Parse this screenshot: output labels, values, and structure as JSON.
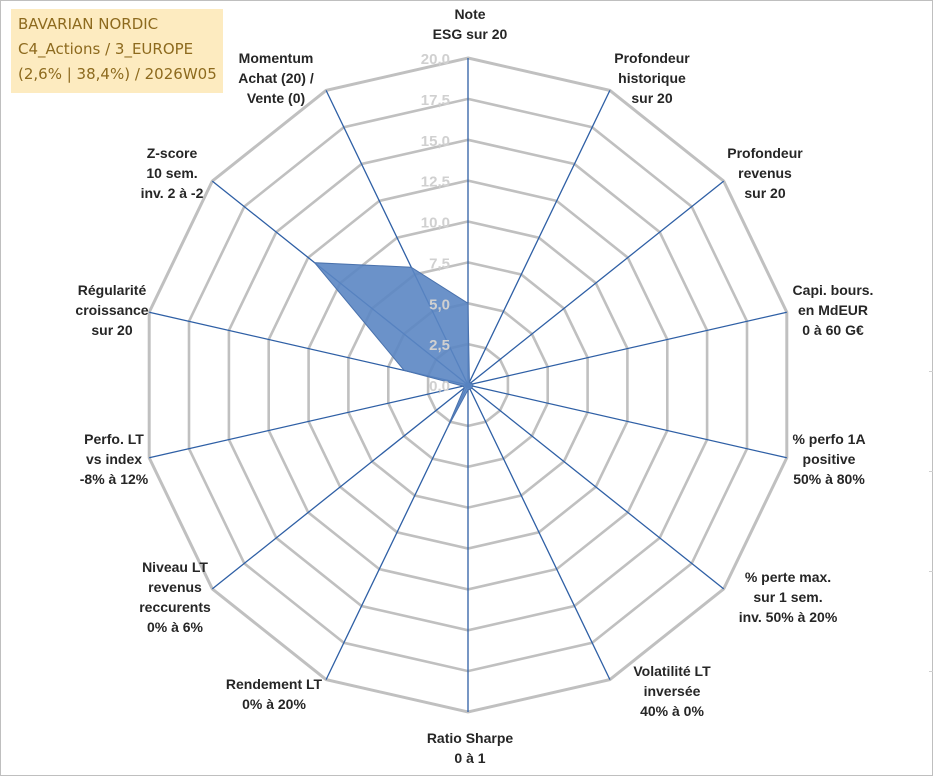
{
  "title_box": {
    "line1": "BAVARIAN NORDIC",
    "line2": "C4_Actions / 3_EUROPE",
    "line3": "(2,6% | 38,4%) / 2026W05"
  },
  "colors": {
    "grid": "#c0c0c0",
    "spokes": "#2e5fa5",
    "fill": "#5b86c3",
    "stroke": "#4a72ad",
    "tick_text": "#d0d0d0",
    "label_text": "#262626"
  },
  "chart_data": {
    "type": "radar",
    "rmax": 20,
    "ticks": [
      "0,0",
      "2,5",
      "5,0",
      "7,5",
      "10,0",
      "12,5",
      "15,0",
      "17,5",
      "20,0"
    ],
    "axes": [
      {
        "label": [
          "Note",
          "ESG sur 20"
        ],
        "value": 5.0
      },
      {
        "label": [
          "Profondeur",
          "historique",
          "sur 20"
        ],
        "value": 0.2
      },
      {
        "label": [
          "Profondeur",
          "revenus",
          "sur 20"
        ],
        "value": 0.2
      },
      {
        "label": [
          "Capi. bours.",
          "en MdEUR",
          "0 à 60 G€"
        ],
        "value": 0.3
      },
      {
        "label": [
          "% perfo 1A",
          "positive",
          "50% à 80%"
        ],
        "value": 0.3
      },
      {
        "label": [
          "% perte max.",
          "sur 1 sem.",
          "inv. 50% à 20%"
        ],
        "value": 0.3
      },
      {
        "label": [
          "Volatilité LT",
          "inversée",
          "40% à 0%"
        ],
        "value": 0.3
      },
      {
        "label": [
          "Ratio Sharpe",
          "0 à 1"
        ],
        "value": 0.3
      },
      {
        "label": [
          "Rendement LT",
          "0% à 20%"
        ],
        "value": 3.0
      },
      {
        "label": [
          "Niveau LT",
          "revenus",
          "reccurents",
          "0% à 6%"
        ],
        "value": 0.3
      },
      {
        "label": [
          "Perfo. LT",
          "vs index",
          "-8% à 12%"
        ],
        "value": 0.3
      },
      {
        "label": [
          "Régularité",
          "croissance",
          "sur 20"
        ],
        "value": 4.0
      },
      {
        "label": [
          "Z-score",
          "10 sem.",
          "inv. 2 à -2"
        ],
        "value": 12.0
      },
      {
        "label": [
          "Momentum",
          "Achat (20) /",
          "Vente (0)"
        ],
        "value": 8.0
      }
    ]
  }
}
